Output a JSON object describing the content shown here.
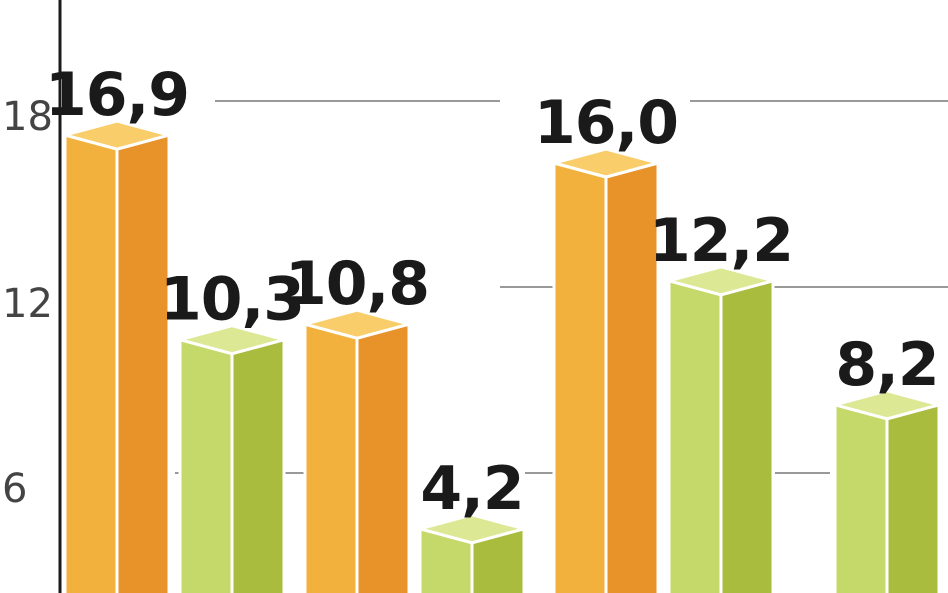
{
  "chart_data": {
    "type": "bar",
    "style": "3d-columns",
    "y_ticks": [
      6,
      12,
      18
    ],
    "y_tick_labels": [
      "6",
      "12",
      "18"
    ],
    "ylim": [
      0,
      21
    ],
    "grid": true,
    "bars": [
      {
        "value": 16.9,
        "label": "16,9",
        "color": "orange"
      },
      {
        "value": 10.3,
        "label": "10,3",
        "color": "green"
      },
      {
        "value": 10.8,
        "label": "10,8",
        "color": "orange"
      },
      {
        "value": 4.2,
        "label": "4,2",
        "color": "green"
      },
      {
        "value": 16.0,
        "label": "16,0",
        "color": "orange"
      },
      {
        "value": 12.2,
        "label": "12,2",
        "color": "green"
      },
      {
        "value": 8.2,
        "label": "8,2",
        "color": "green"
      }
    ]
  },
  "colors": {
    "orange": {
      "front": "#f2b13c",
      "side": "#e8922a",
      "top": "#f8cd6a"
    },
    "green": {
      "front": "#c5d86a",
      "side": "#a9bc3e",
      "top": "#dde895"
    },
    "grid": "#999999",
    "axis": "#1a1a1a"
  }
}
